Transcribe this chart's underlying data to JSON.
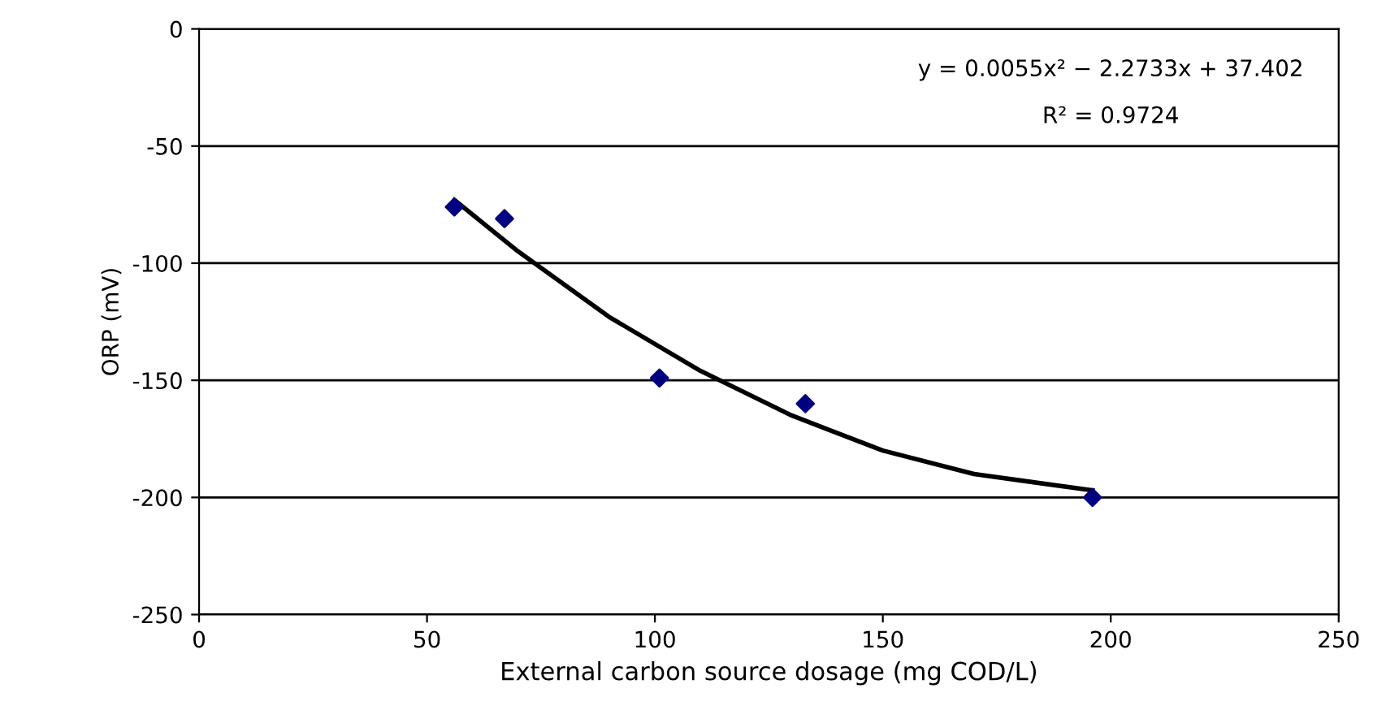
{
  "chart_data": {
    "type": "scatter",
    "xlabel": "External carbon source dosage (mg COD/L)",
    "ylabel": "ORP (mV)",
    "xlim": [
      0,
      250
    ],
    "xticks": [
      0,
      50,
      100,
      150,
      200,
      250
    ],
    "ylim": [
      -250,
      0
    ],
    "yticks": [
      -250,
      -200,
      -150,
      -100,
      -50,
      0
    ],
    "grid": "y",
    "series": [
      {
        "marker": "diamond",
        "color": "#000080",
        "x": [
          56,
          67,
          101,
          133,
          196
        ],
        "values": [
          -76,
          -81,
          -149,
          -160,
          -200
        ]
      },
      {
        "type": "line",
        "marker": "none",
        "color": "#000000",
        "line_style": "solid",
        "x": [
          56,
          70,
          90,
          110,
          130,
          150,
          170,
          196
        ],
        "values": [
          -73,
          -95,
          -123,
          -146,
          -165,
          -180,
          -190,
          -197
        ]
      }
    ],
    "annotations": [
      "y = 0.0055x² − 2.2733x + 37.402",
      "R² = 0.9724"
    ]
  }
}
